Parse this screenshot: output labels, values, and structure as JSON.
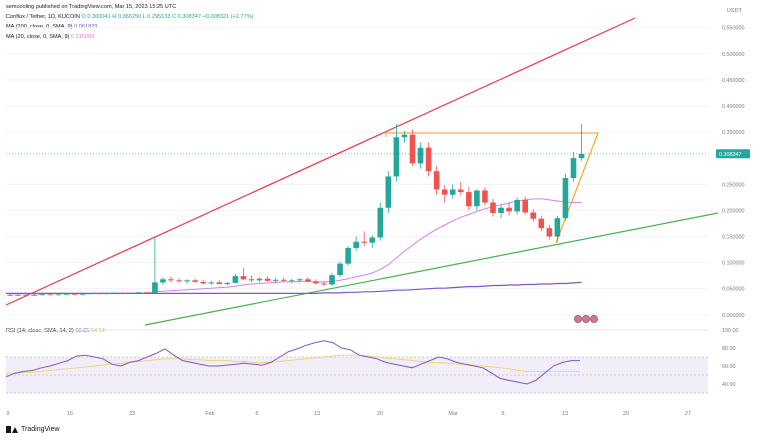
{
  "header": {
    "author_line": "semcooling published on TradingView.com, Mar 15, 2023 15:25 UTC",
    "symbol": "Conflux / Tether, 1D, KUCOIN",
    "ohlc": "O 0.300041  H 0.366250  L 0.295133  C 0.308347  +0.008321 (+2.77%)",
    "ma200": "MA (200, close, 0, SMA, 9)",
    "ma200_value": "0.061829",
    "ma20": "MA (20, close, 0, SMA, 9)",
    "ma20_value": "0.215089",
    "currency": "USDT"
  },
  "rsi_header": {
    "label": "RSI (14, close, SMA, 14, 2)",
    "value1": "66.65",
    "value2": "54.14"
  },
  "footer": {
    "brand": "TradingView"
  },
  "colors": {
    "up": "#26a69a",
    "down": "#ef5350",
    "ma20": "#d881e6",
    "ma200": "#7e57c2",
    "red_line": "#f23645",
    "green_line": "#4caf50",
    "triangle": "#f7a21b",
    "rsi": "#7e57c2",
    "rsi_ma": "#f2d06b"
  },
  "chart_data": [
    {
      "type": "candlestick",
      "title": "Conflux / Tether, 1D, KUCOIN",
      "price_axis": {
        "ticks": [
          "0.550000",
          "0.500000",
          "0.450000",
          "0.400000",
          "0.350000",
          "0.250000",
          "0.200000",
          "0.150000",
          "0.100000",
          "0.050000",
          "0.000000"
        ],
        "range": [
          -0.01,
          0.58
        ]
      },
      "last_price": "0.308347",
      "time_axis": {
        "ticks": [
          "9",
          "16",
          "23",
          "Feb",
          "6",
          "13",
          "20",
          "Mar",
          "6",
          "13",
          "20",
          "27"
        ]
      },
      "candles": [
        {
          "o": 0.038,
          "h": 0.04,
          "l": 0.036,
          "c": 0.037
        },
        {
          "o": 0.037,
          "h": 0.039,
          "l": 0.036,
          "c": 0.038
        },
        {
          "o": 0.038,
          "h": 0.039,
          "l": 0.036,
          "c": 0.037
        },
        {
          "o": 0.037,
          "h": 0.039,
          "l": 0.036,
          "c": 0.038
        },
        {
          "o": 0.038,
          "h": 0.04,
          "l": 0.037,
          "c": 0.039
        },
        {
          "o": 0.039,
          "h": 0.041,
          "l": 0.037,
          "c": 0.038
        },
        {
          "o": 0.038,
          "h": 0.04,
          "l": 0.037,
          "c": 0.039
        },
        {
          "o": 0.039,
          "h": 0.041,
          "l": 0.038,
          "c": 0.04
        },
        {
          "o": 0.04,
          "h": 0.042,
          "l": 0.038,
          "c": 0.039
        },
        {
          "o": 0.039,
          "h": 0.041,
          "l": 0.038,
          "c": 0.04
        },
        {
          "o": 0.04,
          "h": 0.042,
          "l": 0.039,
          "c": 0.041
        },
        {
          "o": 0.041,
          "h": 0.042,
          "l": 0.039,
          "c": 0.04
        },
        {
          "o": 0.04,
          "h": 0.042,
          "l": 0.039,
          "c": 0.041
        },
        {
          "o": 0.041,
          "h": 0.043,
          "l": 0.04,
          "c": 0.042
        },
        {
          "o": 0.042,
          "h": 0.043,
          "l": 0.04,
          "c": 0.041
        },
        {
          "o": 0.041,
          "h": 0.043,
          "l": 0.04,
          "c": 0.042
        },
        {
          "o": 0.042,
          "h": 0.044,
          "l": 0.041,
          "c": 0.043
        },
        {
          "o": 0.043,
          "h": 0.044,
          "l": 0.041,
          "c": 0.042
        },
        {
          "o": 0.042,
          "h": 0.15,
          "l": 0.041,
          "c": 0.062
        },
        {
          "o": 0.062,
          "h": 0.072,
          "l": 0.058,
          "c": 0.068
        },
        {
          "o": 0.068,
          "h": 0.073,
          "l": 0.062,
          "c": 0.066
        },
        {
          "o": 0.066,
          "h": 0.07,
          "l": 0.061,
          "c": 0.064
        },
        {
          "o": 0.064,
          "h": 0.068,
          "l": 0.06,
          "c": 0.066
        },
        {
          "o": 0.066,
          "h": 0.069,
          "l": 0.061,
          "c": 0.063
        },
        {
          "o": 0.063,
          "h": 0.067,
          "l": 0.058,
          "c": 0.06
        },
        {
          "o": 0.06,
          "h": 0.065,
          "l": 0.057,
          "c": 0.062
        },
        {
          "o": 0.062,
          "h": 0.066,
          "l": 0.058,
          "c": 0.059
        },
        {
          "o": 0.059,
          "h": 0.063,
          "l": 0.056,
          "c": 0.061
        },
        {
          "o": 0.061,
          "h": 0.078,
          "l": 0.06,
          "c": 0.074
        },
        {
          "o": 0.074,
          "h": 0.09,
          "l": 0.066,
          "c": 0.068
        },
        {
          "o": 0.068,
          "h": 0.075,
          "l": 0.062,
          "c": 0.066
        },
        {
          "o": 0.066,
          "h": 0.072,
          "l": 0.062,
          "c": 0.069
        },
        {
          "o": 0.069,
          "h": 0.073,
          "l": 0.063,
          "c": 0.065
        },
        {
          "o": 0.065,
          "h": 0.07,
          "l": 0.061,
          "c": 0.067
        },
        {
          "o": 0.067,
          "h": 0.071,
          "l": 0.063,
          "c": 0.065
        },
        {
          "o": 0.065,
          "h": 0.069,
          "l": 0.061,
          "c": 0.066
        },
        {
          "o": 0.066,
          "h": 0.07,
          "l": 0.062,
          "c": 0.068
        },
        {
          "o": 0.068,
          "h": 0.072,
          "l": 0.062,
          "c": 0.064
        },
        {
          "o": 0.064,
          "h": 0.068,
          "l": 0.058,
          "c": 0.06
        },
        {
          "o": 0.06,
          "h": 0.064,
          "l": 0.055,
          "c": 0.058
        },
        {
          "o": 0.058,
          "h": 0.08,
          "l": 0.056,
          "c": 0.076
        },
        {
          "o": 0.076,
          "h": 0.102,
          "l": 0.072,
          "c": 0.098
        },
        {
          "o": 0.098,
          "h": 0.132,
          "l": 0.094,
          "c": 0.128
        },
        {
          "o": 0.128,
          "h": 0.15,
          "l": 0.122,
          "c": 0.14
        },
        {
          "o": 0.14,
          "h": 0.16,
          "l": 0.132,
          "c": 0.138
        },
        {
          "o": 0.138,
          "h": 0.152,
          "l": 0.128,
          "c": 0.148
        },
        {
          "o": 0.148,
          "h": 0.215,
          "l": 0.142,
          "c": 0.205
        },
        {
          "o": 0.205,
          "h": 0.275,
          "l": 0.195,
          "c": 0.265
        },
        {
          "o": 0.265,
          "h": 0.366,
          "l": 0.255,
          "c": 0.34
        },
        {
          "o": 0.34,
          "h": 0.352,
          "l": 0.33,
          "c": 0.345
        },
        {
          "o": 0.345,
          "h": 0.355,
          "l": 0.285,
          "c": 0.29
        },
        {
          "o": 0.29,
          "h": 0.33,
          "l": 0.28,
          "c": 0.32
        },
        {
          "o": 0.32,
          "h": 0.33,
          "l": 0.265,
          "c": 0.275
        },
        {
          "o": 0.275,
          "h": 0.285,
          "l": 0.23,
          "c": 0.24
        },
        {
          "o": 0.24,
          "h": 0.248,
          "l": 0.215,
          "c": 0.23
        },
        {
          "o": 0.23,
          "h": 0.25,
          "l": 0.222,
          "c": 0.24
        },
        {
          "o": 0.24,
          "h": 0.255,
          "l": 0.228,
          "c": 0.235
        },
        {
          "o": 0.235,
          "h": 0.245,
          "l": 0.2,
          "c": 0.208
        },
        {
          "o": 0.208,
          "h": 0.24,
          "l": 0.2,
          "c": 0.238
        },
        {
          "o": 0.238,
          "h": 0.244,
          "l": 0.21,
          "c": 0.215
        },
        {
          "o": 0.215,
          "h": 0.222,
          "l": 0.188,
          "c": 0.195
        },
        {
          "o": 0.195,
          "h": 0.21,
          "l": 0.185,
          "c": 0.205
        },
        {
          "o": 0.205,
          "h": 0.215,
          "l": 0.19,
          "c": 0.198
        },
        {
          "o": 0.198,
          "h": 0.225,
          "l": 0.192,
          "c": 0.22
        },
        {
          "o": 0.22,
          "h": 0.226,
          "l": 0.192,
          "c": 0.196
        },
        {
          "o": 0.196,
          "h": 0.202,
          "l": 0.178,
          "c": 0.184
        },
        {
          "o": 0.184,
          "h": 0.19,
          "l": 0.16,
          "c": 0.166
        },
        {
          "o": 0.166,
          "h": 0.172,
          "l": 0.144,
          "c": 0.15
        },
        {
          "o": 0.15,
          "h": 0.19,
          "l": 0.14,
          "c": 0.185
        },
        {
          "o": 0.185,
          "h": 0.27,
          "l": 0.18,
          "c": 0.262
        },
        {
          "o": 0.262,
          "h": 0.312,
          "l": 0.255,
          "c": 0.3
        },
        {
          "o": 0.3,
          "h": 0.366,
          "l": 0.295,
          "c": 0.308
        }
      ],
      "ma20": [
        0.04,
        0.04,
        0.04,
        0.04,
        0.04,
        0.041,
        0.041,
        0.041,
        0.041,
        0.041,
        0.041,
        0.041,
        0.041,
        0.041,
        0.041,
        0.041,
        0.041,
        0.041,
        0.044,
        0.045,
        0.046,
        0.047,
        0.048,
        0.049,
        0.05,
        0.051,
        0.052,
        0.053,
        0.055,
        0.057,
        0.059,
        0.06,
        0.061,
        0.062,
        0.063,
        0.063,
        0.064,
        0.064,
        0.063,
        0.063,
        0.064,
        0.066,
        0.069,
        0.073,
        0.076,
        0.08,
        0.087,
        0.096,
        0.109,
        0.122,
        0.133,
        0.145,
        0.155,
        0.164,
        0.172,
        0.18,
        0.187,
        0.192,
        0.198,
        0.203,
        0.207,
        0.211,
        0.214,
        0.218,
        0.22,
        0.222,
        0.222,
        0.22,
        0.218,
        0.216,
        0.215,
        0.215
      ],
      "ma200": [
        0.041,
        0.041,
        0.041,
        0.041,
        0.041,
        0.041,
        0.041,
        0.041,
        0.041,
        0.041,
        0.041,
        0.041,
        0.041,
        0.041,
        0.041,
        0.041,
        0.041,
        0.041,
        0.041,
        0.041,
        0.041,
        0.041,
        0.041,
        0.041,
        0.041,
        0.041,
        0.041,
        0.041,
        0.041,
        0.041,
        0.041,
        0.041,
        0.041,
        0.041,
        0.041,
        0.041,
        0.041,
        0.041,
        0.041,
        0.042,
        0.042,
        0.042,
        0.043,
        0.043,
        0.044,
        0.044,
        0.045,
        0.046,
        0.047,
        0.047,
        0.048,
        0.049,
        0.05,
        0.051,
        0.051,
        0.052,
        0.053,
        0.054,
        0.054,
        0.055,
        0.056,
        0.056,
        0.057,
        0.057,
        0.058,
        0.058,
        0.059,
        0.059,
        0.06,
        0.06,
        0.061,
        0.062
      ]
    },
    {
      "type": "line",
      "title": "RSI (14, close, SMA, 14, 2)",
      "y_ticks": [
        "100.00",
        "80.00",
        "60.00",
        "40.00"
      ],
      "ylim": [
        20,
        100
      ],
      "band": [
        30,
        70
      ],
      "series": [
        {
          "name": "RSI",
          "values": [
            48,
            52,
            54,
            55,
            58,
            60,
            63,
            66,
            71,
            72,
            70,
            68,
            62,
            60,
            64,
            66,
            70,
            74,
            79,
            72,
            66,
            64,
            62,
            60,
            60,
            61,
            62,
            63,
            62,
            61,
            64,
            70,
            76,
            79,
            83,
            86,
            88,
            86,
            80,
            78,
            72,
            70,
            68,
            64,
            62,
            60,
            58,
            62,
            66,
            70,
            68,
            64,
            62,
            60,
            58,
            52,
            46,
            44,
            42,
            40,
            44,
            52,
            60,
            64,
            66,
            66
          ]
        },
        {
          "name": "RSI MA",
          "values": [
            52,
            52,
            53,
            53,
            54,
            55,
            56,
            57,
            58,
            59,
            60,
            61,
            62,
            63,
            64,
            65,
            66,
            67,
            68,
            68,
            68,
            67,
            67,
            66,
            66,
            66,
            65,
            65,
            64,
            64,
            64,
            65,
            66,
            67,
            68,
            69,
            70,
            71,
            72,
            72,
            72,
            71,
            70,
            69,
            68,
            67,
            66,
            65,
            64,
            64,
            63,
            62,
            62,
            61,
            60,
            59,
            58,
            57,
            55,
            54,
            54,
            54,
            54,
            54,
            54,
            54
          ]
        }
      ]
    }
  ]
}
